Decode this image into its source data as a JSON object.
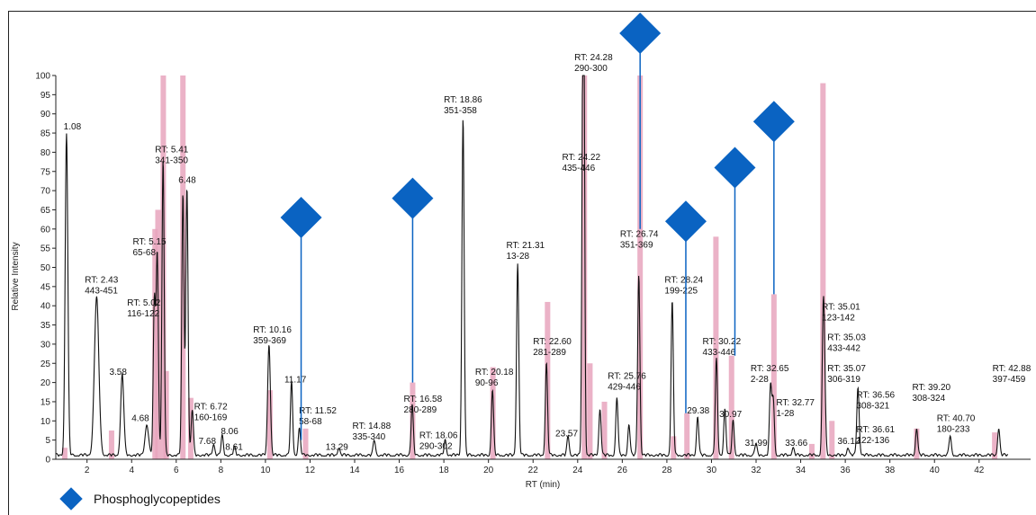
{
  "chart_data": {
    "type": "line",
    "xlabel": "RT (min)",
    "ylabel": "Relative Intensity",
    "xlim": [
      0.6,
      43.3
    ],
    "ylim": [
      0,
      100
    ],
    "x_ticks": [
      2,
      4,
      6,
      8,
      10,
      12,
      14,
      16,
      18,
      20,
      22,
      24,
      26,
      28,
      30,
      32,
      34,
      36,
      38,
      40,
      42
    ],
    "y_ticks": [
      0,
      5,
      10,
      15,
      20,
      25,
      30,
      35,
      40,
      45,
      50,
      55,
      60,
      65,
      70,
      75,
      80,
      85,
      90,
      95,
      100
    ],
    "colors": {
      "trace": "#111111",
      "bars": "#e8a4bd",
      "phospho": "#0a63c2"
    },
    "peaks": [
      {
        "rt": 1.08,
        "h": 84,
        "w": 0.06
      },
      {
        "rt": 2.43,
        "h": 41,
        "w": 0.1
      },
      {
        "rt": 3.58,
        "h": 21,
        "w": 0.07
      },
      {
        "rt": 4.68,
        "h": 8,
        "w": 0.08
      },
      {
        "rt": 5.02,
        "h": 40,
        "w": 0.05
      },
      {
        "rt": 5.15,
        "h": 52,
        "w": 0.05
      },
      {
        "rt": 5.41,
        "h": 77,
        "w": 0.05
      },
      {
        "rt": 6.3,
        "h": 68,
        "w": 0.05
      },
      {
        "rt": 6.48,
        "h": 70,
        "w": 0.05
      },
      {
        "rt": 6.72,
        "h": 12,
        "w": 0.05
      },
      {
        "rt": 7.68,
        "h": 3,
        "w": 0.05
      },
      {
        "rt": 8.06,
        "h": 5,
        "w": 0.05
      },
      {
        "rt": 8.61,
        "h": 2,
        "w": 0.05
      },
      {
        "rt": 10.16,
        "h": 29,
        "w": 0.06
      },
      {
        "rt": 11.17,
        "h": 19,
        "w": 0.05
      },
      {
        "rt": 11.52,
        "h": 7,
        "w": 0.05
      },
      {
        "rt": 13.29,
        "h": 2,
        "w": 0.05
      },
      {
        "rt": 14.88,
        "h": 4,
        "w": 0.05
      },
      {
        "rt": 16.58,
        "h": 13,
        "w": 0.05
      },
      {
        "rt": 18.06,
        "h": 4,
        "w": 0.05
      },
      {
        "rt": 18.86,
        "h": 88,
        "w": 0.05
      },
      {
        "rt": 20.18,
        "h": 17,
        "w": 0.05
      },
      {
        "rt": 21.31,
        "h": 50,
        "w": 0.05
      },
      {
        "rt": 22.6,
        "h": 24,
        "w": 0.05
      },
      {
        "rt": 23.57,
        "h": 5,
        "w": 0.05
      },
      {
        "rt": 24.22,
        "h": 75,
        "w": 0.04
      },
      {
        "rt": 24.28,
        "h": 100,
        "w": 0.04
      },
      {
        "rt": 25.0,
        "h": 12,
        "w": 0.05
      },
      {
        "rt": 25.76,
        "h": 15,
        "w": 0.05
      },
      {
        "rt": 26.3,
        "h": 8,
        "w": 0.05
      },
      {
        "rt": 26.74,
        "h": 47,
        "w": 0.05
      },
      {
        "rt": 28.24,
        "h": 40,
        "w": 0.05
      },
      {
        "rt": 29.38,
        "h": 10,
        "w": 0.05
      },
      {
        "rt": 30.22,
        "h": 25,
        "w": 0.05
      },
      {
        "rt": 30.6,
        "h": 12,
        "w": 0.05
      },
      {
        "rt": 30.97,
        "h": 9,
        "w": 0.05
      },
      {
        "rt": 31.99,
        "h": 3,
        "w": 0.05
      },
      {
        "rt": 32.65,
        "h": 18,
        "w": 0.05
      },
      {
        "rt": 32.77,
        "h": 14,
        "w": 0.05
      },
      {
        "rt": 33.66,
        "h": 2,
        "w": 0.05
      },
      {
        "rt": 35.01,
        "h": 33,
        "w": 0.05
      },
      {
        "rt": 35.07,
        "h": 15,
        "w": 0.05
      },
      {
        "rt": 36.12,
        "h": 2,
        "w": 0.05
      },
      {
        "rt": 36.56,
        "h": 15,
        "w": 0.05
      },
      {
        "rt": 36.61,
        "h": 4,
        "w": 0.05
      },
      {
        "rt": 39.2,
        "h": 7,
        "w": 0.05
      },
      {
        "rt": 40.7,
        "h": 5,
        "w": 0.05
      },
      {
        "rt": 42.88,
        "h": 7,
        "w": 0.05
      }
    ],
    "bars": [
      {
        "x": 1.0,
        "h": 3
      },
      {
        "x": 3.1,
        "h": 7.5
      },
      {
        "x": 5.05,
        "h": 60
      },
      {
        "x": 5.18,
        "h": 65
      },
      {
        "x": 5.42,
        "h": 100
      },
      {
        "x": 5.55,
        "h": 23
      },
      {
        "x": 6.3,
        "h": 100
      },
      {
        "x": 6.65,
        "h": 16
      },
      {
        "x": 10.2,
        "h": 18
      },
      {
        "x": 11.8,
        "h": 8
      },
      {
        "x": 16.6,
        "h": 20
      },
      {
        "x": 20.2,
        "h": 24
      },
      {
        "x": 22.65,
        "h": 41
      },
      {
        "x": 24.3,
        "h": 100
      },
      {
        "x": 24.55,
        "h": 25
      },
      {
        "x": 25.2,
        "h": 15
      },
      {
        "x": 26.8,
        "h": 100
      },
      {
        "x": 28.3,
        "h": 6
      },
      {
        "x": 28.9,
        "h": 12
      },
      {
        "x": 30.2,
        "h": 58
      },
      {
        "x": 30.9,
        "h": 27
      },
      {
        "x": 32.8,
        "h": 43
      },
      {
        "x": 34.5,
        "h": 4
      },
      {
        "x": 35.0,
        "h": 98
      },
      {
        "x": 35.4,
        "h": 10
      },
      {
        "x": 39.2,
        "h": 8
      },
      {
        "x": 42.7,
        "h": 7
      }
    ],
    "labels": [
      {
        "rt": 1.08,
        "text": [
          "1.08"
        ],
        "lx": 0.95,
        "ly": 86
      },
      {
        "rt": 2.43,
        "text": [
          "RT: 2.43",
          "443-451"
        ],
        "lx": 1.9,
        "ly": 46
      },
      {
        "rt": 3.58,
        "text": [
          "3.58"
        ],
        "lx": 3.0,
        "ly": 22
      },
      {
        "rt": 4.68,
        "text": [
          "4.68"
        ],
        "lx": 4.0,
        "ly": 10
      },
      {
        "rt": 5.02,
        "text": [
          "RT: 5.02",
          "116-122"
        ],
        "lx": 3.8,
        "ly": 40
      },
      {
        "rt": 5.15,
        "text": [
          "RT: 5.15",
          "65-68"
        ],
        "lx": 4.05,
        "ly": 56
      },
      {
        "rt": 5.41,
        "text": [
          "RT: 5.41",
          "341-350"
        ],
        "lx": 5.05,
        "ly": 80
      },
      {
        "rt": 6.48,
        "text": [
          "6.48"
        ],
        "lx": 6.1,
        "ly": 72
      },
      {
        "rt": 6.72,
        "text": [
          "RT: 6.72",
          "160-169"
        ],
        "lx": 6.8,
        "ly": 13
      },
      {
        "rt": 7.68,
        "text": [
          "7.68"
        ],
        "lx": 7.0,
        "ly": 4
      },
      {
        "rt": 8.06,
        "text": [
          "8.06"
        ],
        "lx": 8.0,
        "ly": 6.5
      },
      {
        "rt": 8.61,
        "text": [
          "8.61"
        ],
        "lx": 8.2,
        "ly": 2.5
      },
      {
        "rt": 10.16,
        "text": [
          "RT: 10.16",
          "359-369"
        ],
        "lx": 9.45,
        "ly": 33
      },
      {
        "rt": 11.17,
        "text": [
          "11.17"
        ],
        "lx": 10.85,
        "ly": 20
      },
      {
        "rt": 11.52,
        "text": [
          "RT: 11.52",
          "58-68"
        ],
        "lx": 11.5,
        "ly": 12
      },
      {
        "rt": 13.29,
        "text": [
          "13.29"
        ],
        "lx": 12.7,
        "ly": 2.5
      },
      {
        "rt": 14.88,
        "text": [
          "RT: 14.88",
          "335-340"
        ],
        "lx": 13.9,
        "ly": 8
      },
      {
        "rt": 16.58,
        "text": [
          "RT: 16.58",
          "280-289"
        ],
        "lx": 16.2,
        "ly": 15
      },
      {
        "rt": 18.06,
        "text": [
          "RT: 18.06",
          "290-302"
        ],
        "lx": 16.9,
        "ly": 5.5
      },
      {
        "rt": 18.86,
        "text": [
          "RT: 18.86",
          "351-358"
        ],
        "lx": 18.0,
        "ly": 93
      },
      {
        "rt": 20.18,
        "text": [
          "RT: 20.18",
          "90-96"
        ],
        "lx": 19.4,
        "ly": 22
      },
      {
        "rt": 21.31,
        "text": [
          "RT: 21.31",
          "13-28"
        ],
        "lx": 20.8,
        "ly": 55
      },
      {
        "rt": 22.6,
        "text": [
          "RT: 22.60",
          "281-289"
        ],
        "lx": 22.0,
        "ly": 30
      },
      {
        "rt": 23.57,
        "text": [
          "23.57"
        ],
        "lx": 23.0,
        "ly": 6
      },
      {
        "rt": 24.22,
        "text": [
          "RT: 24.22",
          "435-446"
        ],
        "lx": 23.3,
        "ly": 78
      },
      {
        "rt": 24.28,
        "text": [
          "RT: 24.28",
          "290-300"
        ],
        "lx": 23.85,
        "ly": 104
      },
      {
        "rt": 25.76,
        "text": [
          "RT: 25.76",
          "429-446"
        ],
        "lx": 25.35,
        "ly": 21
      },
      {
        "rt": 26.74,
        "text": [
          "RT: 26.74",
          "351-369"
        ],
        "lx": 25.9,
        "ly": 58
      },
      {
        "rt": 28.24,
        "text": [
          "RT: 28.24",
          "199-225"
        ],
        "lx": 27.9,
        "ly": 46
      },
      {
        "rt": 29.38,
        "text": [
          "29.38"
        ],
        "lx": 28.9,
        "ly": 12
      },
      {
        "rt": 30.22,
        "text": [
          "RT: 30.22",
          "433-446"
        ],
        "lx": 29.6,
        "ly": 30
      },
      {
        "rt": 30.97,
        "text": [
          "30.97"
        ],
        "lx": 30.35,
        "ly": 11
      },
      {
        "rt": 31.99,
        "text": [
          "31.99"
        ],
        "lx": 31.5,
        "ly": 3.5
      },
      {
        "rt": 32.65,
        "text": [
          "RT: 32.65",
          "2-28"
        ],
        "lx": 31.75,
        "ly": 23
      },
      {
        "rt": 32.77,
        "text": [
          "RT: 32.77",
          "1-28"
        ],
        "lx": 32.9,
        "ly": 14
      },
      {
        "rt": 33.66,
        "text": [
          "33.66"
        ],
        "lx": 33.3,
        "ly": 3.5
      },
      {
        "rt": 35.01,
        "text": [
          "RT: 35.01",
          "123-142"
        ],
        "lx": 34.95,
        "ly": 39
      },
      {
        "rt": 35.03,
        "text": [
          "RT: 35.03",
          "433-442"
        ],
        "lx": 35.2,
        "ly": 31
      },
      {
        "rt": 35.07,
        "text": [
          "RT: 35.07",
          "306-319"
        ],
        "lx": 35.2,
        "ly": 23
      },
      {
        "rt": 36.12,
        "text": [
          "36.12"
        ],
        "lx": 35.65,
        "ly": 4
      },
      {
        "rt": 36.56,
        "text": [
          "RT: 36.56",
          "308-321"
        ],
        "lx": 36.5,
        "ly": 16
      },
      {
        "rt": 36.61,
        "text": [
          "RT: 36.61",
          "122-136"
        ],
        "lx": 36.5,
        "ly": 7
      },
      {
        "rt": 39.2,
        "text": [
          "RT: 39.20",
          "308-324"
        ],
        "lx": 39.0,
        "ly": 18
      },
      {
        "rt": 40.7,
        "text": [
          "RT: 40.70",
          "180-233"
        ],
        "lx": 40.1,
        "ly": 10
      },
      {
        "rt": 42.88,
        "text": [
          "RT: 42.88",
          "397-459"
        ],
        "lx": 42.6,
        "ly": 23
      }
    ],
    "phospho_markers": [
      {
        "rt": 11.6,
        "peak_h": 5,
        "marker_y": 63
      },
      {
        "rt": 16.6,
        "peak_h": 20,
        "marker_y": 68
      },
      {
        "rt": 26.8,
        "peak_h": 60,
        "marker_y": 111
      },
      {
        "rt": 28.85,
        "peak_h": 12,
        "marker_y": 62
      },
      {
        "rt": 31.05,
        "peak_h": 27,
        "marker_y": 76
      },
      {
        "rt": 32.8,
        "peak_h": 43,
        "marker_y": 88
      }
    ]
  },
  "legend": {
    "label": "Phosphoglycopeptides",
    "icon": "blue-diamond"
  }
}
